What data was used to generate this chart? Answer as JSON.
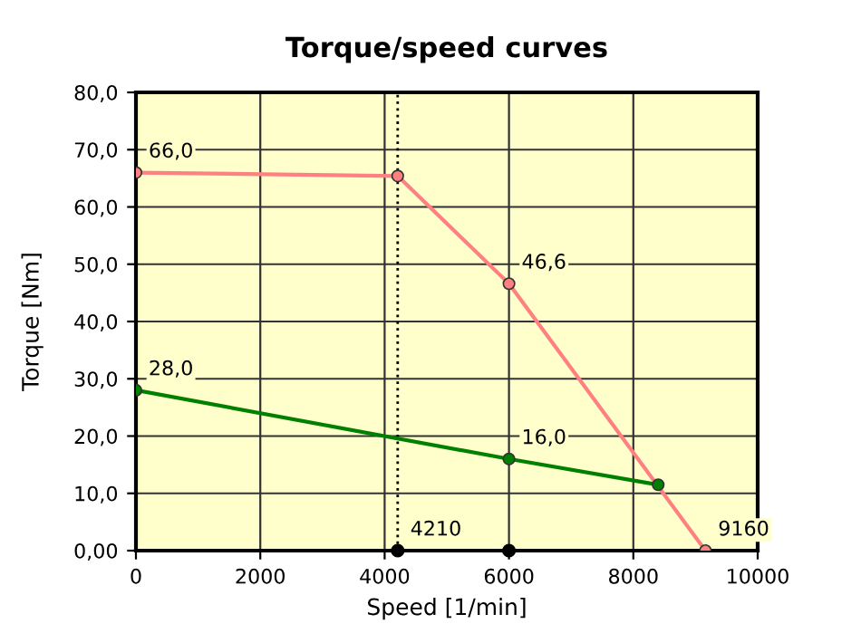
{
  "chart_data": {
    "type": "line",
    "title": "Torque/speed curves",
    "xlabel": "Speed [1/min]",
    "ylabel": "Torque [Nm]",
    "xlim": [
      0,
      10000
    ],
    "xticks": [
      0,
      2000,
      4000,
      6000,
      8000,
      10000
    ],
    "ylim": [
      0,
      80
    ],
    "yticks": [
      {
        "value": 0,
        "label": "0,00"
      },
      {
        "value": 10,
        "label": "10,0"
      },
      {
        "value": 20,
        "label": "20,0"
      },
      {
        "value": 30,
        "label": "30,0"
      },
      {
        "value": 40,
        "label": "40,0"
      },
      {
        "value": 50,
        "label": "50,0"
      },
      {
        "value": 60,
        "label": "60,0"
      },
      {
        "value": 70,
        "label": "70,0"
      },
      {
        "value": 80,
        "label": "80,0"
      }
    ],
    "grid": true,
    "marker": "circle",
    "line_style": "solid",
    "series": [
      {
        "color": "#ff8080",
        "x": [
          0,
          4210,
          6000,
          9160
        ],
        "values": [
          66.0,
          65.4,
          46.6,
          0
        ]
      },
      {
        "color": "#008000",
        "x": [
          0,
          6000,
          8400
        ],
        "values": [
          28.0,
          16.0,
          11.5
        ]
      },
      {
        "type": "scatter",
        "color": "#000000",
        "x": [
          4210,
          6000
        ],
        "values": [
          0,
          0
        ]
      }
    ],
    "ref_lines": [
      {
        "axis": "x",
        "value": 4210,
        "color": "#000000",
        "line_style": "dotted"
      }
    ],
    "annotations": [
      {
        "text": "66,0",
        "x": 0,
        "y": 66.0
      },
      {
        "text": "46,6",
        "x": 6000,
        "y": 46.6
      },
      {
        "text": "28,0",
        "x": 0,
        "y": 28.0
      },
      {
        "text": "16,0",
        "x": 6000,
        "y": 16.0
      },
      {
        "text": "4210",
        "x": 4210,
        "y": 0
      },
      {
        "text": "9160",
        "x": 9160,
        "y": 0
      }
    ]
  }
}
